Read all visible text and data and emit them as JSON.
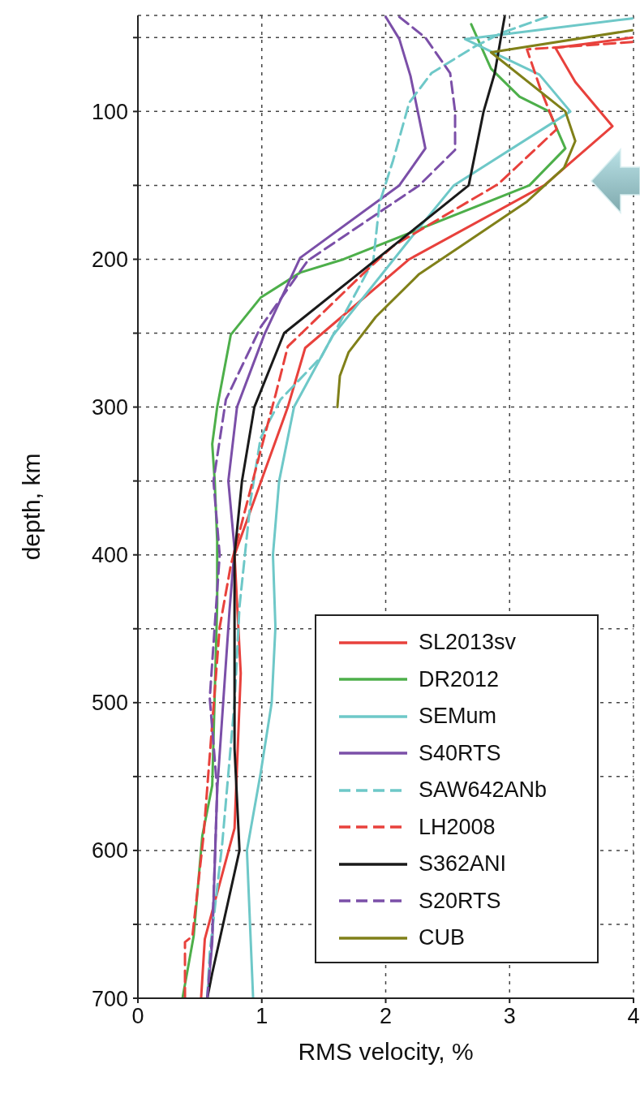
{
  "chart_data": {
    "type": "line",
    "xlabel": "RMS velocity, %",
    "ylabel": "depth, km",
    "xlim": [
      0,
      4
    ],
    "xticks": [
      0,
      1,
      2,
      3,
      4
    ],
    "ylim": [
      700,
      35
    ],
    "yticks": [
      {
        "value": 50,
        "label": null
      },
      100,
      {
        "value": 150,
        "label": null
      },
      200,
      {
        "value": 250,
        "label": null
      },
      300,
      {
        "value": 350,
        "label": null
      },
      400,
      {
        "value": 450,
        "label": null
      },
      500,
      {
        "value": 550,
        "label": null
      },
      600,
      {
        "value": 650,
        "label": null
      },
      700
    ],
    "grid": true,
    "legend": "bottom right",
    "series": [
      {
        "name": "SL2013sv",
        "color": "#e8413c",
        "line_style": "solid",
        "x": [
          3.99,
          3.37,
          3.53,
          3.83,
          3.28,
          2.19,
          1.35,
          1.21,
          0.78,
          0.83,
          0.78,
          0.54,
          0.51
        ],
        "values": [
          50,
          57,
          80,
          110,
          150,
          200,
          260,
          300,
          400,
          480,
          585,
          660,
          700
        ]
      },
      {
        "name": "DR2012",
        "color": "#4daf4a",
        "line_style": "solid",
        "x": [
          2.69,
          2.85,
          3.08,
          3.32,
          3.45,
          3.16,
          1.66,
          1.31,
          0.99,
          0.75,
          0.64,
          0.6,
          0.62,
          0.64,
          0.64,
          0.6,
          0.52,
          0.45,
          0.36
        ],
        "values": [
          41,
          71,
          90,
          100,
          125,
          150,
          200,
          209,
          226,
          251,
          300,
          325,
          350,
          391,
          433,
          556,
          590,
          658,
          700
        ]
      },
      {
        "name": "SEMum",
        "color": "#6ec8c8",
        "line_style": "solid",
        "x": [
          3.99,
          2.64,
          2.89,
          3.24,
          3.49,
          2.55,
          2.17,
          1.57,
          1.26,
          1.14,
          1.09,
          1.11,
          1.08,
          0.99,
          0.88,
          0.93
        ],
        "values": [
          37,
          51,
          61,
          75,
          100,
          150,
          189,
          252,
          300,
          350,
          400,
          449,
          500,
          548,
          600,
          700
        ]
      },
      {
        "name": "S40RTS",
        "color": "#7b4fa8",
        "line_style": "solid",
        "x": [
          2.0,
          2.11,
          2.2,
          2.32,
          2.11,
          1.31,
          1.02,
          0.8,
          0.73,
          0.78,
          0.74,
          0.64,
          0.6,
          0.56
        ],
        "values": [
          36,
          51,
          76,
          125,
          150,
          199,
          251,
          300,
          350,
          396,
          437,
          559,
          662,
          700
        ]
      },
      {
        "name": "SAW642ANb",
        "color": "#6ec8c8",
        "line_style": "dashed",
        "x": [
          3.3,
          2.93,
          2.72,
          2.37,
          2.19,
          2.06,
          1.95,
          1.9,
          1.7,
          1.48,
          1.15,
          0.99,
          0.91,
          0.82,
          0.78,
          0.68,
          0.58,
          0.56
        ],
        "values": [
          36,
          47,
          56,
          74,
          94,
          133,
          162,
          201,
          232,
          266,
          295,
          321,
          363,
          435,
          500,
          596,
          669,
          700
        ]
      },
      {
        "name": "LH2008",
        "color": "#e8413c",
        "line_style": "dashed",
        "x": [
          3.99,
          3.14,
          3.25,
          3.38,
          2.91,
          2.06,
          1.84,
          1.21,
          1.11,
          0.97,
          0.75,
          0.66,
          0.53,
          0.44,
          0.38,
          0.38
        ],
        "values": [
          53,
          58,
          85,
          112,
          149,
          191,
          208,
          259,
          292,
          336,
          407,
          449,
          590,
          658,
          662,
          700
        ]
      },
      {
        "name": "S362ANI",
        "color": "#1a1a1a",
        "line_style": "solid",
        "x": [
          2.96,
          2.93,
          2.88,
          2.79,
          2.67,
          2.09,
          1.18,
          0.94,
          0.84,
          0.78,
          0.78,
          0.82,
          0.6,
          0.56
        ],
        "values": [
          36,
          50,
          74,
          100,
          150,
          189,
          250,
          300,
          350,
          400,
          531,
          600,
          683,
          700
        ]
      },
      {
        "name": "S20RTS",
        "color": "#7b4fa8",
        "line_style": "dashed",
        "x": [
          2.11,
          2.32,
          2.52,
          2.56,
          2.56,
          2.27,
          1.37,
          0.99,
          0.71,
          0.61,
          0.66,
          0.58,
          0.64,
          0.6,
          0.56
        ],
        "values": [
          36,
          50,
          74,
          100,
          126,
          150,
          201,
          246,
          295,
          350,
          400,
          497,
          559,
          658,
          700
        ]
      },
      {
        "name": "CUB",
        "color": "#808019",
        "line_style": "solid",
        "x": [
          3.99,
          2.85,
          3.45,
          3.53,
          3.44,
          3.14,
          2.59,
          2.27,
          1.92,
          1.7,
          1.63,
          1.61
        ],
        "values": [
          45,
          60,
          100,
          120,
          138,
          161,
          192,
          210,
          239,
          263,
          279,
          300
        ]
      }
    ]
  }
}
